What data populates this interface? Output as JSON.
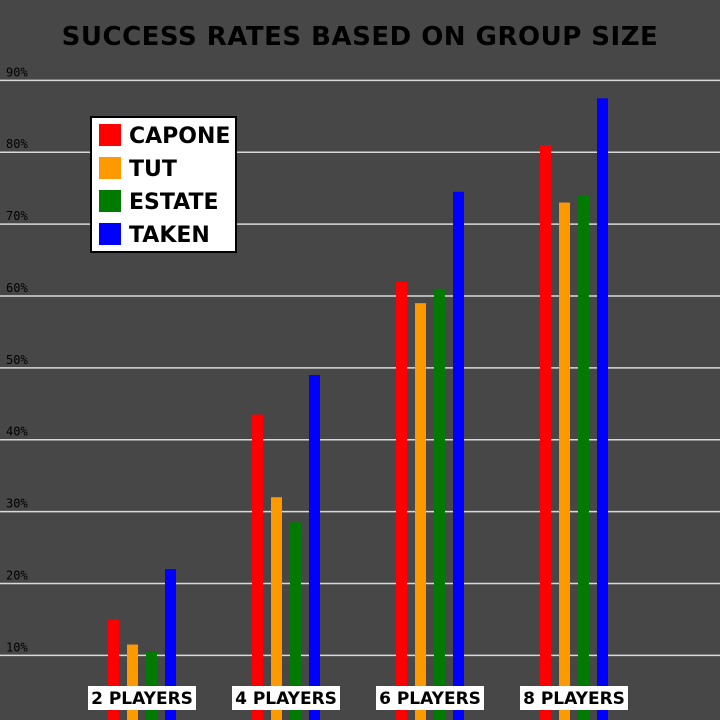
{
  "chart_data": {
    "type": "bar",
    "title": "SUCCESS RATES BASED ON GROUP SIZE",
    "xlabel": "",
    "ylabel": "",
    "categories": [
      "2 PLAYERS",
      "4 PLAYERS",
      "6 PLAYERS",
      "8 PLAYERS"
    ],
    "series": [
      {
        "name": "CAPONE",
        "color": "#ff0000",
        "values": [
          15,
          43.5,
          62,
          81
        ]
      },
      {
        "name": "TUT",
        "color": "#ff9900",
        "values": [
          11.5,
          32,
          59,
          73
        ]
      },
      {
        "name": "ESTATE",
        "color": "#007a00",
        "values": [
          10.5,
          28.5,
          61,
          74
        ]
      },
      {
        "name": "TAKEN",
        "color": "#0000ff",
        "values": [
          22,
          49,
          74.5,
          87.5
        ]
      }
    ],
    "ylim": [
      1,
      92
    ],
    "yticks": [
      10,
      20,
      30,
      40,
      50,
      60,
      70,
      80,
      90
    ],
    "ytick_labels": [
      "10%",
      "20%",
      "30%",
      "40%",
      "50%",
      "60%",
      "70%",
      "80%",
      "90%"
    ],
    "grid": true,
    "legend_position": "top-left"
  }
}
